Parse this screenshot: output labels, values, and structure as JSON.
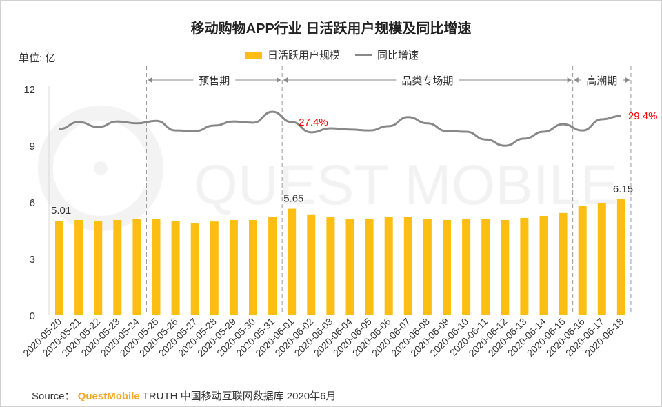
{
  "title": "移动购物APP行业 日活跃用户规模及同比增速",
  "unit_label": "单位: 亿",
  "watermark": "QUEST MOBILE",
  "source": {
    "prefix": "Source：",
    "brand": "QuestMobile",
    "rest": "TRUTH 中国移动互联网数据库 2020年6月"
  },
  "colors": {
    "bar": "#FDBE14",
    "line": "#888888",
    "highlight": "#FF0000"
  },
  "chart_data": {
    "type": "bar+line",
    "title": "移动购物APP行业 日活跃用户规模及同比增速",
    "ylabel": "单位: 亿",
    "ylim": [
      0,
      12
    ],
    "yticks": [
      0,
      3,
      6,
      9,
      12
    ],
    "grid": false,
    "legend_position": "top",
    "categories": [
      "2020-05-20",
      "2020-05-21",
      "2020-05-22",
      "2020-05-23",
      "2020-05-24",
      "2020-05-25",
      "2020-05-26",
      "2020-05-27",
      "2020-05-28",
      "2020-05-29",
      "2020-05-30",
      "2020-05-31",
      "2020-06-01",
      "2020-06-02",
      "2020-06-03",
      "2020-06-04",
      "2020-06-05",
      "2020-06-06",
      "2020-06-07",
      "2020-06-08",
      "2020-06-09",
      "2020-06-10",
      "2020-06-11",
      "2020-06-12",
      "2020-06-13",
      "2020-06-14",
      "2020-06-15",
      "2020-06-16",
      "2020-06-17",
      "2020-06-18"
    ],
    "series": [
      {
        "name": "日活跃用户规模",
        "type": "bar",
        "unit": "亿",
        "values": [
          5.01,
          5.05,
          5.01,
          5.05,
          5.12,
          5.12,
          5.01,
          4.9,
          4.97,
          5.05,
          5.05,
          5.2,
          5.65,
          5.35,
          5.2,
          5.12,
          5.09,
          5.2,
          5.2,
          5.09,
          5.05,
          5.12,
          5.09,
          5.05,
          5.16,
          5.27,
          5.42,
          5.8,
          5.95,
          6.15
        ]
      },
      {
        "name": "同比增速",
        "type": "line",
        "unit": "%",
        "axis": "secondary-hidden",
        "values": [
          25.2,
          27.4,
          25.8,
          27.6,
          27.0,
          27.8,
          24.7,
          24.5,
          26.3,
          27.6,
          27.2,
          30.7,
          27.4,
          24.1,
          25.4,
          25.0,
          24.7,
          26.1,
          29.0,
          27.0,
          24.5,
          24.3,
          21.8,
          19.8,
          22.1,
          24.3,
          26.7,
          24.7,
          28.3,
          29.4
        ]
      }
    ],
    "bar_labels": [
      {
        "category": "2020-05-20",
        "text": "5.01"
      },
      {
        "category": "2020-06-01",
        "text": "5.65"
      },
      {
        "category": "2020-06-18",
        "text": "6.15"
      }
    ],
    "line_labels": [
      {
        "category": "2020-06-01",
        "text": "27.4%"
      },
      {
        "category": "2020-06-18",
        "text": "29.4%"
      }
    ],
    "periods": [
      {
        "label": "预售期",
        "start": "2020-05-25",
        "end": "2020-05-31"
      },
      {
        "label": "品类专场期",
        "start": "2020-06-01",
        "end": "2020-06-15"
      },
      {
        "label": "高潮期",
        "start": "2020-06-16",
        "end": "2020-06-18"
      }
    ]
  }
}
